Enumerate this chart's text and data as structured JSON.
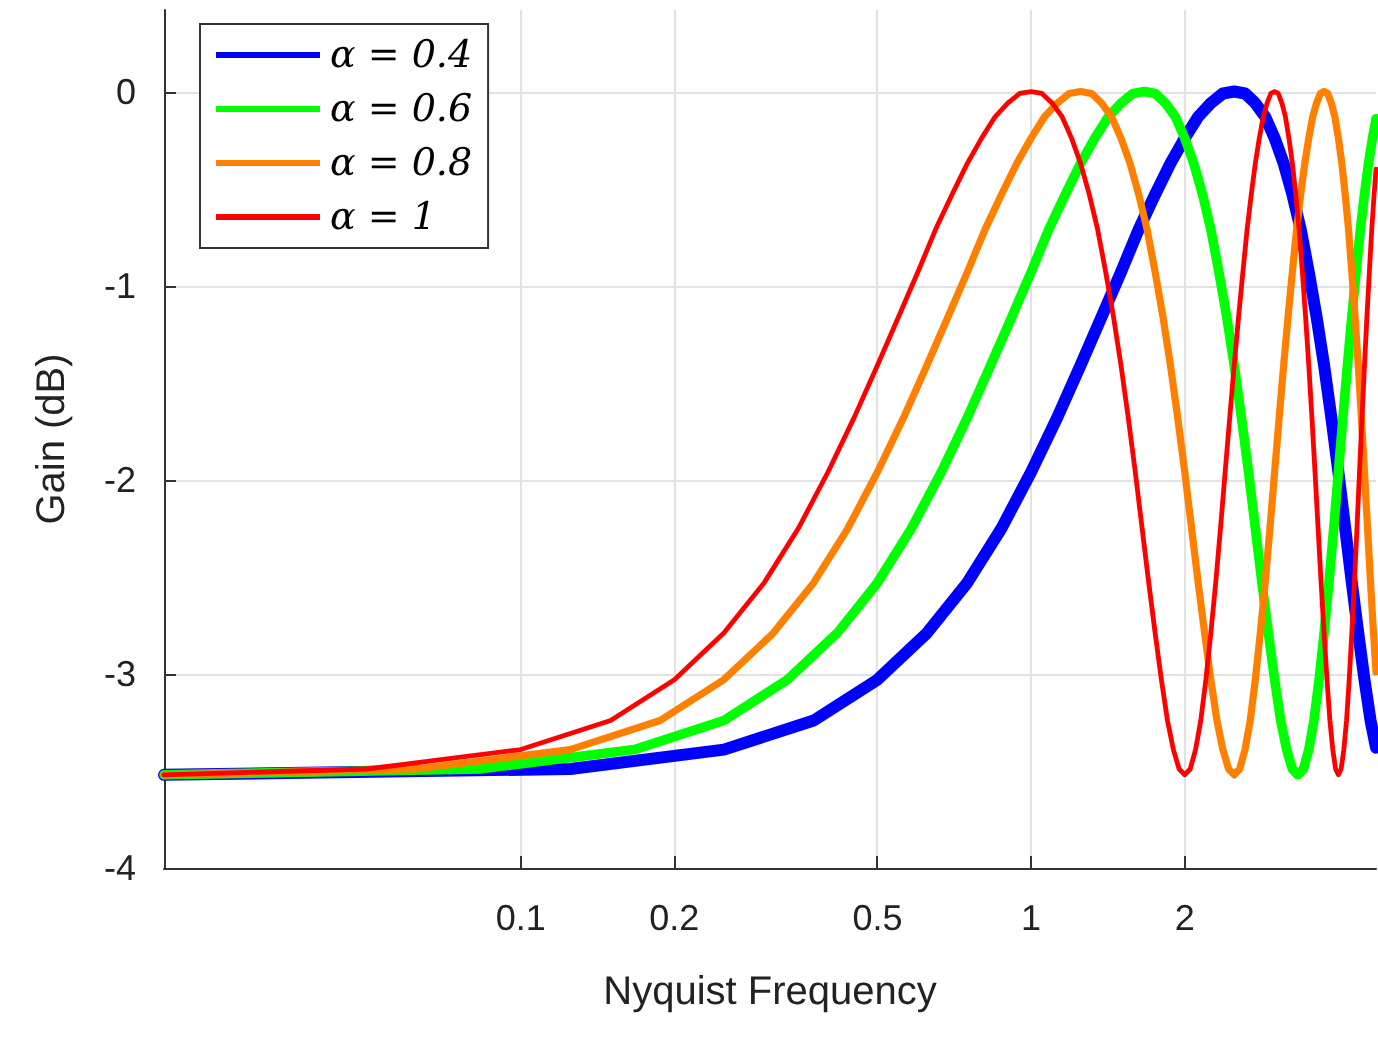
{
  "chart_data": {
    "type": "line",
    "xlabel": "Nyquist Frequency",
    "ylabel": "Gain (dB)",
    "log": "x",
    "grid": true,
    "legend": "top left",
    "marker": "none",
    "line_style": "solid",
    "xlim": [
      0.02,
      4.74
    ],
    "xticks": [
      0.1,
      0.2,
      0.5,
      1,
      2
    ],
    "ylim": [
      -4,
      0.42
    ],
    "yticks": [
      -4,
      -3,
      -2,
      -1,
      0
    ],
    "series": [
      {
        "name": "α = 0.4",
        "color": "#0000ff",
        "x": [
          0.02,
          0.125,
          0.25,
          0.375,
          0.5,
          0.625,
          0.75,
          0.875,
          1,
          1.125,
          1.25,
          1.375,
          1.5,
          1.625,
          1.75,
          1.875,
          2,
          2.125,
          2.25,
          2.375,
          2.5,
          2.625,
          2.75,
          2.875,
          3,
          3.125,
          3.25,
          3.375,
          3.5,
          3.625,
          3.75,
          3.875,
          4,
          4.125,
          4.25,
          4.375,
          4.5,
          4.625,
          4.74
        ],
        "values": [
          -3.52,
          -3.49,
          -3.39,
          -3.24,
          -3.03,
          -2.79,
          -2.53,
          -2.25,
          -1.96,
          -1.68,
          -1.41,
          -1.16,
          -0.93,
          -0.71,
          -0.53,
          -0.37,
          -0.24,
          -0.13,
          -0.06,
          -0.01,
          0,
          -0.01,
          -0.06,
          -0.13,
          -0.24,
          -0.37,
          -0.53,
          -0.71,
          -0.93,
          -1.16,
          -1.41,
          -1.68,
          -1.96,
          -2.25,
          -2.53,
          -2.79,
          -3.03,
          -3.24,
          -3.38
        ]
      },
      {
        "name": "α = 0.6",
        "color": "#00ff00",
        "x": [
          0.02,
          0.083,
          0.167,
          0.25,
          0.333,
          0.417,
          0.5,
          0.583,
          0.667,
          0.75,
          0.833,
          0.917,
          1,
          1.083,
          1.167,
          1.25,
          1.333,
          1.417,
          1.5,
          1.583,
          1.667,
          1.75,
          1.833,
          1.917,
          2,
          2.083,
          2.167,
          2.25,
          2.333,
          2.417,
          2.5,
          2.583,
          2.667,
          2.75,
          2.833,
          2.917,
          3,
          3.083,
          3.167,
          3.25,
          3.333,
          3.417,
          3.5,
          3.583,
          3.667,
          3.75,
          3.833,
          3.917,
          4,
          4.083,
          4.167,
          4.25,
          4.333,
          4.417,
          4.5,
          4.583,
          4.667,
          4.74
        ],
        "values": [
          -3.52,
          -3.49,
          -3.39,
          -3.24,
          -3.03,
          -2.79,
          -2.53,
          -2.25,
          -1.96,
          -1.68,
          -1.41,
          -1.16,
          -0.93,
          -0.71,
          -0.53,
          -0.37,
          -0.24,
          -0.13,
          -0.06,
          -0.01,
          0,
          -0.01,
          -0.06,
          -0.13,
          -0.24,
          -0.37,
          -0.53,
          -0.71,
          -0.93,
          -1.16,
          -1.41,
          -1.68,
          -1.96,
          -2.25,
          -2.53,
          -2.79,
          -3.03,
          -3.24,
          -3.39,
          -3.49,
          -3.52,
          -3.49,
          -3.39,
          -3.24,
          -3.03,
          -2.79,
          -2.53,
          -2.25,
          -1.96,
          -1.68,
          -1.41,
          -1.16,
          -0.93,
          -0.71,
          -0.53,
          -0.37,
          -0.24,
          -0.14
        ]
      },
      {
        "name": "α = 0.8",
        "color": "#ff8000",
        "x": [
          0.02,
          0.0625,
          0.125,
          0.1875,
          0.25,
          0.3125,
          0.375,
          0.4375,
          0.5,
          0.5625,
          0.625,
          0.6875,
          0.75,
          0.8125,
          0.875,
          0.9375,
          1,
          1.0625,
          1.125,
          1.1875,
          1.25,
          1.3125,
          1.375,
          1.4375,
          1.5,
          1.5625,
          1.625,
          1.6875,
          1.75,
          1.8125,
          1.875,
          1.9375,
          2,
          2.0625,
          2.125,
          2.1875,
          2.25,
          2.3125,
          2.375,
          2.4375,
          2.5,
          2.5625,
          2.625,
          2.6875,
          2.75,
          2.8125,
          2.875,
          2.9375,
          3,
          3.0625,
          3.125,
          3.1875,
          3.25,
          3.3125,
          3.375,
          3.4375,
          3.5,
          3.5625,
          3.625,
          3.6875,
          3.75,
          3.8125,
          3.875,
          3.9375,
          4,
          4.0625,
          4.125,
          4.1875,
          4.25,
          4.3125,
          4.375,
          4.4375,
          4.5,
          4.5625,
          4.625,
          4.6875,
          4.74
        ],
        "values": [
          -3.52,
          -3.49,
          -3.39,
          -3.24,
          -3.03,
          -2.79,
          -2.53,
          -2.25,
          -1.96,
          -1.68,
          -1.41,
          -1.16,
          -0.93,
          -0.71,
          -0.53,
          -0.37,
          -0.24,
          -0.13,
          -0.06,
          -0.01,
          0,
          -0.01,
          -0.06,
          -0.13,
          -0.24,
          -0.37,
          -0.53,
          -0.71,
          -0.93,
          -1.16,
          -1.41,
          -1.68,
          -1.96,
          -2.25,
          -2.53,
          -2.79,
          -3.03,
          -3.24,
          -3.39,
          -3.49,
          -3.52,
          -3.49,
          -3.39,
          -3.24,
          -3.03,
          -2.79,
          -2.53,
          -2.25,
          -1.96,
          -1.68,
          -1.41,
          -1.16,
          -0.93,
          -0.71,
          -0.53,
          -0.37,
          -0.24,
          -0.13,
          -0.06,
          -0.01,
          0,
          -0.01,
          -0.06,
          -0.13,
          -0.24,
          -0.37,
          -0.53,
          -0.71,
          -0.93,
          -1.16,
          -1.41,
          -1.68,
          -1.96,
          -2.25,
          -2.53,
          -2.79,
          -2.99
        ]
      },
      {
        "name": "α = 1",
        "color": "#ff0000",
        "x": [
          0.02,
          0.05,
          0.1,
          0.15,
          0.2,
          0.25,
          0.3,
          0.35,
          0.4,
          0.45,
          0.5,
          0.55,
          0.6,
          0.65,
          0.7,
          0.75,
          0.8,
          0.85,
          0.9,
          0.95,
          1,
          1.05,
          1.1,
          1.15,
          1.2,
          1.25,
          1.3,
          1.35,
          1.4,
          1.45,
          1.5,
          1.55,
          1.6,
          1.65,
          1.7,
          1.75,
          1.8,
          1.85,
          1.9,
          1.95,
          2,
          2.05,
          2.1,
          2.15,
          2.2,
          2.25,
          2.3,
          2.35,
          2.4,
          2.45,
          2.5,
          2.55,
          2.6,
          2.65,
          2.7,
          2.75,
          2.8,
          2.85,
          2.9,
          2.95,
          3,
          3.05,
          3.1,
          3.15,
          3.2,
          3.25,
          3.3,
          3.35,
          3.4,
          3.45,
          3.5,
          3.55,
          3.6,
          3.65,
          3.7,
          3.75,
          3.8,
          3.85,
          3.9,
          3.95,
          4,
          4.05,
          4.1,
          4.15,
          4.2,
          4.25,
          4.3,
          4.35,
          4.4,
          4.45,
          4.5,
          4.55,
          4.6,
          4.65,
          4.7,
          4.74
        ],
        "values": [
          -3.52,
          -3.49,
          -3.39,
          -3.24,
          -3.03,
          -2.79,
          -2.53,
          -2.25,
          -1.96,
          -1.68,
          -1.41,
          -1.16,
          -0.93,
          -0.71,
          -0.53,
          -0.37,
          -0.24,
          -0.13,
          -0.06,
          -0.01,
          0,
          -0.01,
          -0.06,
          -0.13,
          -0.24,
          -0.37,
          -0.53,
          -0.71,
          -0.93,
          -1.16,
          -1.41,
          -1.68,
          -1.96,
          -2.25,
          -2.53,
          -2.79,
          -3.03,
          -3.24,
          -3.39,
          -3.49,
          -3.52,
          -3.49,
          -3.39,
          -3.24,
          -3.03,
          -2.79,
          -2.53,
          -2.25,
          -1.96,
          -1.68,
          -1.41,
          -1.16,
          -0.93,
          -0.71,
          -0.53,
          -0.37,
          -0.24,
          -0.13,
          -0.06,
          -0.01,
          0,
          -0.01,
          -0.06,
          -0.13,
          -0.24,
          -0.37,
          -0.53,
          -0.71,
          -0.93,
          -1.16,
          -1.41,
          -1.68,
          -1.96,
          -2.25,
          -2.53,
          -2.79,
          -3.03,
          -3.24,
          -3.39,
          -3.49,
          -3.52,
          -3.49,
          -3.39,
          -3.24,
          -3.03,
          -2.79,
          -2.53,
          -2.25,
          -1.96,
          -1.68,
          -1.41,
          -1.16,
          -0.93,
          -0.71,
          -0.53,
          -0.4
        ]
      }
    ]
  }
}
